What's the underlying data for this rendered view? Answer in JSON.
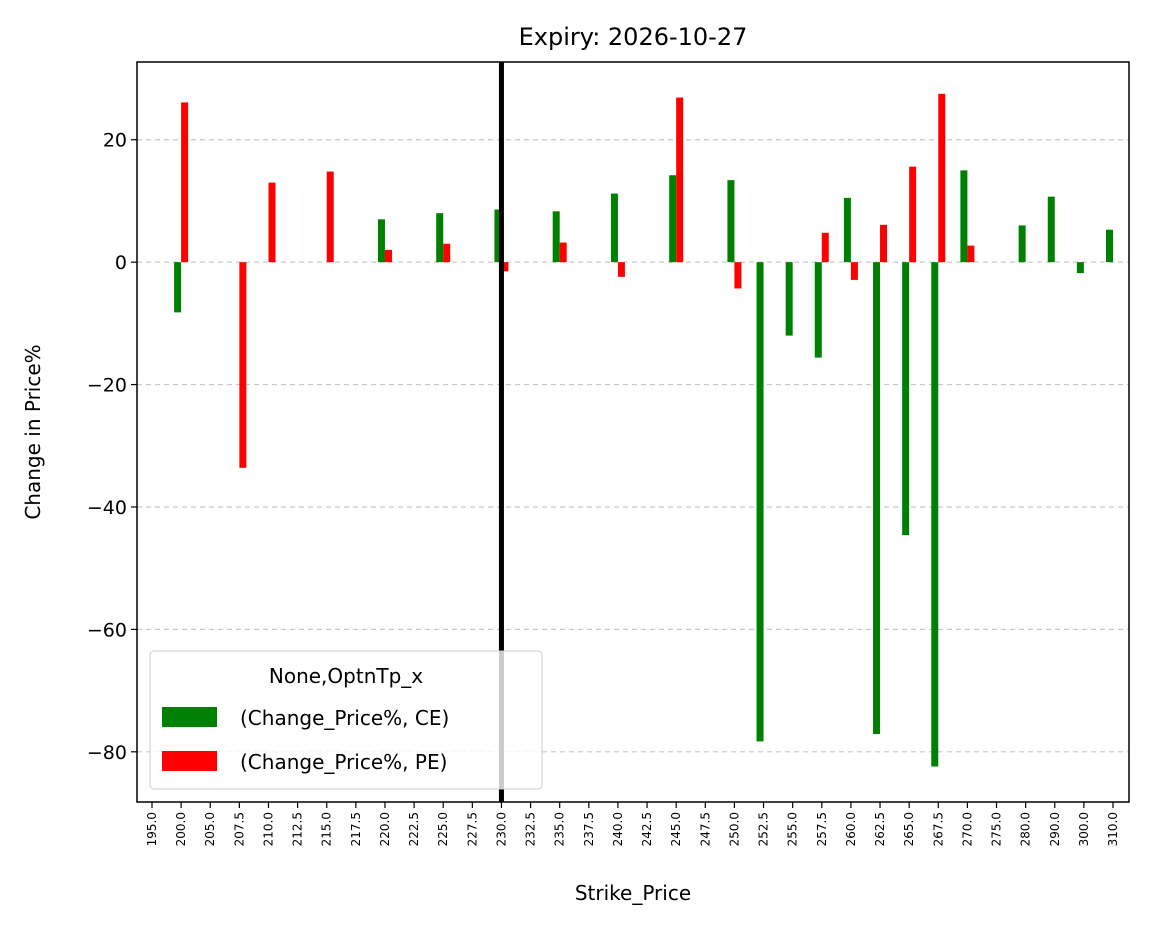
{
  "chart_data": {
    "type": "bar",
    "title": "Expiry: 2026-10-27",
    "xlabel": "Strike_Price",
    "ylabel": "Change in Price%",
    "ylim": [
      -88.2,
      32.7
    ],
    "yticks": [
      20,
      0,
      -20,
      -40,
      -60,
      -80
    ],
    "ytick_labels": [
      "20",
      "0",
      "−20",
      "−40",
      "−60",
      "−80"
    ],
    "grid": "y-dashed",
    "legend_placement": "lower-left",
    "legend_title": "None,OptnTp_x",
    "categories": [
      "195.0",
      "200.0",
      "205.0",
      "207.5",
      "210.0",
      "212.5",
      "215.0",
      "217.5",
      "220.0",
      "222.5",
      "225.0",
      "227.5",
      "230.0",
      "232.5",
      "235.0",
      "237.5",
      "240.0",
      "242.5",
      "245.0",
      "247.5",
      "250.0",
      "252.5",
      "255.0",
      "257.5",
      "260.0",
      "262.5",
      "265.0",
      "267.5",
      "270.0",
      "275.0",
      "280.0",
      "290.0",
      "300.0",
      "310.0"
    ],
    "series": [
      {
        "name": "(Change_Price%, CE)",
        "color": "#008000",
        "values": [
          null,
          -8.2,
          null,
          null,
          null,
          null,
          null,
          null,
          7,
          null,
          8,
          null,
          8.6,
          null,
          8.3,
          null,
          11.2,
          null,
          14.2,
          null,
          13.4,
          -78.3,
          -12,
          -15.6,
          10.5,
          -77.1,
          -44.6,
          -82.4,
          15,
          null,
          6,
          10.7,
          -1.8,
          5.3
        ]
      },
      {
        "name": "(Change_Price%, PE)",
        "color": "#ff0000",
        "values": [
          null,
          26.1,
          null,
          -33.6,
          13,
          null,
          14.8,
          null,
          2,
          null,
          3,
          null,
          -1.5,
          null,
          3.2,
          null,
          -2.4,
          null,
          26.9,
          null,
          -4.3,
          null,
          null,
          4.8,
          -2.9,
          6.1,
          15.6,
          27.5,
          2.7,
          null,
          null,
          null,
          null,
          null
        ]
      }
    ],
    "reference_line": {
      "x": "230.0",
      "color": "#000000"
    }
  }
}
